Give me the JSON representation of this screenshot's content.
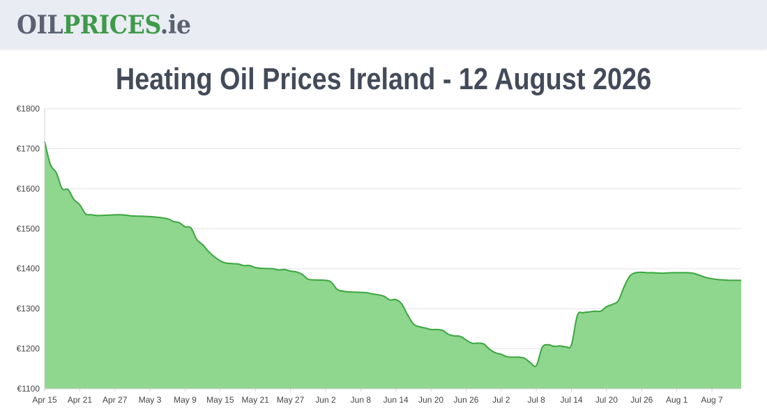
{
  "site": {
    "logo_part1": "OIL",
    "logo_part2": "PRICES",
    "logo_part3": ".ie"
  },
  "page_title": "Heating Oil Prices Ireland - 12 August 2026",
  "colors": {
    "header_bg": "#e9ecf3",
    "line": "#3aa63f",
    "fill": "#8fd68e",
    "logo_grey": "#5a6272",
    "logo_green": "#3f9a4a"
  },
  "chart_data": {
    "type": "area",
    "title": "",
    "xlabel": "",
    "ylabel": "",
    "y_prefix": "€",
    "ylim": [
      1100,
      1800
    ],
    "yticks": [
      1100,
      1200,
      1300,
      1400,
      1500,
      1600,
      1700,
      1800
    ],
    "grid": true,
    "x_tick_labels": [
      "Apr 15",
      "Apr 21",
      "Apr 27",
      "May 3",
      "May 9",
      "May 15",
      "May 21",
      "May 27",
      "Jun 2",
      "Jun 8",
      "Jun 14",
      "Jun 20",
      "Jun 26",
      "Jul 2",
      "Jul 8",
      "Jul 14",
      "Jul 20",
      "Jul 26",
      "Aug 1",
      "Aug 7"
    ],
    "x_start": "2026-04-15",
    "x_end": "2026-08-12",
    "series": [
      {
        "points": [
          [
            "2026-04-15",
            1718
          ],
          [
            "2026-04-16",
            1660
          ],
          [
            "2026-04-17",
            1640
          ],
          [
            "2026-04-18",
            1600
          ],
          [
            "2026-04-19",
            1598
          ],
          [
            "2026-04-20",
            1573
          ],
          [
            "2026-04-21",
            1560
          ],
          [
            "2026-04-22",
            1537
          ],
          [
            "2026-04-23",
            1535
          ],
          [
            "2026-04-24",
            1533
          ],
          [
            "2026-04-26",
            1534
          ],
          [
            "2026-04-28",
            1535
          ],
          [
            "2026-04-30",
            1532
          ],
          [
            "2026-05-02",
            1531
          ],
          [
            "2026-05-04",
            1529
          ],
          [
            "2026-05-06",
            1525
          ],
          [
            "2026-05-07",
            1518
          ],
          [
            "2026-05-08",
            1515
          ],
          [
            "2026-05-09",
            1505
          ],
          [
            "2026-05-10",
            1502
          ],
          [
            "2026-05-11",
            1473
          ],
          [
            "2026-05-12",
            1460
          ],
          [
            "2026-05-13",
            1443
          ],
          [
            "2026-05-14",
            1430
          ],
          [
            "2026-05-15",
            1420
          ],
          [
            "2026-05-16",
            1414
          ],
          [
            "2026-05-18",
            1412
          ],
          [
            "2026-05-19",
            1408
          ],
          [
            "2026-05-20",
            1408
          ],
          [
            "2026-05-21",
            1403
          ],
          [
            "2026-05-22",
            1401
          ],
          [
            "2026-05-24",
            1400
          ],
          [
            "2026-05-25",
            1397
          ],
          [
            "2026-05-26",
            1398
          ],
          [
            "2026-05-27",
            1394
          ],
          [
            "2026-05-28",
            1392
          ],
          [
            "2026-05-29",
            1386
          ],
          [
            "2026-05-30",
            1374
          ],
          [
            "2026-05-31",
            1372
          ],
          [
            "2026-06-02",
            1371
          ],
          [
            "2026-06-03",
            1366
          ],
          [
            "2026-06-04",
            1348
          ],
          [
            "2026-06-05",
            1344
          ],
          [
            "2026-06-06",
            1342
          ],
          [
            "2026-06-08",
            1341
          ],
          [
            "2026-06-09",
            1340
          ],
          [
            "2026-06-10",
            1337
          ],
          [
            "2026-06-11",
            1335
          ],
          [
            "2026-06-12",
            1331
          ],
          [
            "2026-06-13",
            1322
          ],
          [
            "2026-06-14",
            1323
          ],
          [
            "2026-06-15",
            1312
          ],
          [
            "2026-06-16",
            1285
          ],
          [
            "2026-06-17",
            1262
          ],
          [
            "2026-06-18",
            1255
          ],
          [
            "2026-06-19",
            1252
          ],
          [
            "2026-06-20",
            1248
          ],
          [
            "2026-06-21",
            1248
          ],
          [
            "2026-06-22",
            1246
          ],
          [
            "2026-06-23",
            1236
          ],
          [
            "2026-06-24",
            1232
          ],
          [
            "2026-06-25",
            1231
          ],
          [
            "2026-06-26",
            1222
          ],
          [
            "2026-06-27",
            1214
          ],
          [
            "2026-06-28",
            1214
          ],
          [
            "2026-06-29",
            1212
          ],
          [
            "2026-06-30",
            1199
          ],
          [
            "2026-07-01",
            1190
          ],
          [
            "2026-07-02",
            1186
          ],
          [
            "2026-07-03",
            1180
          ],
          [
            "2026-07-04",
            1179
          ],
          [
            "2026-07-05",
            1179
          ],
          [
            "2026-07-06",
            1176
          ],
          [
            "2026-07-07",
            1165
          ],
          [
            "2026-07-08",
            1158
          ],
          [
            "2026-07-09",
            1203
          ],
          [
            "2026-07-10",
            1210
          ],
          [
            "2026-07-11",
            1206
          ],
          [
            "2026-07-12",
            1207
          ],
          [
            "2026-07-13",
            1205
          ],
          [
            "2026-07-14",
            1210
          ],
          [
            "2026-07-15",
            1283
          ],
          [
            "2026-07-16",
            1290
          ],
          [
            "2026-07-17",
            1292
          ],
          [
            "2026-07-18",
            1294
          ],
          [
            "2026-07-19",
            1294
          ],
          [
            "2026-07-20",
            1305
          ],
          [
            "2026-07-21",
            1311
          ],
          [
            "2026-07-22",
            1320
          ],
          [
            "2026-07-23",
            1355
          ],
          [
            "2026-07-24",
            1382
          ],
          [
            "2026-07-25",
            1390
          ],
          [
            "2026-07-26",
            1391
          ],
          [
            "2026-07-27",
            1390
          ],
          [
            "2026-07-28",
            1390
          ],
          [
            "2026-07-29",
            1389
          ],
          [
            "2026-07-30",
            1389
          ],
          [
            "2026-07-31",
            1390
          ],
          [
            "2026-08-01",
            1390
          ],
          [
            "2026-08-03",
            1390
          ],
          [
            "2026-08-04",
            1388
          ],
          [
            "2026-08-05",
            1383
          ],
          [
            "2026-08-06",
            1378
          ],
          [
            "2026-08-07",
            1375
          ],
          [
            "2026-08-08",
            1373
          ],
          [
            "2026-08-09",
            1372
          ],
          [
            "2026-08-10",
            1371
          ],
          [
            "2026-08-12",
            1371
          ]
        ]
      }
    ]
  }
}
